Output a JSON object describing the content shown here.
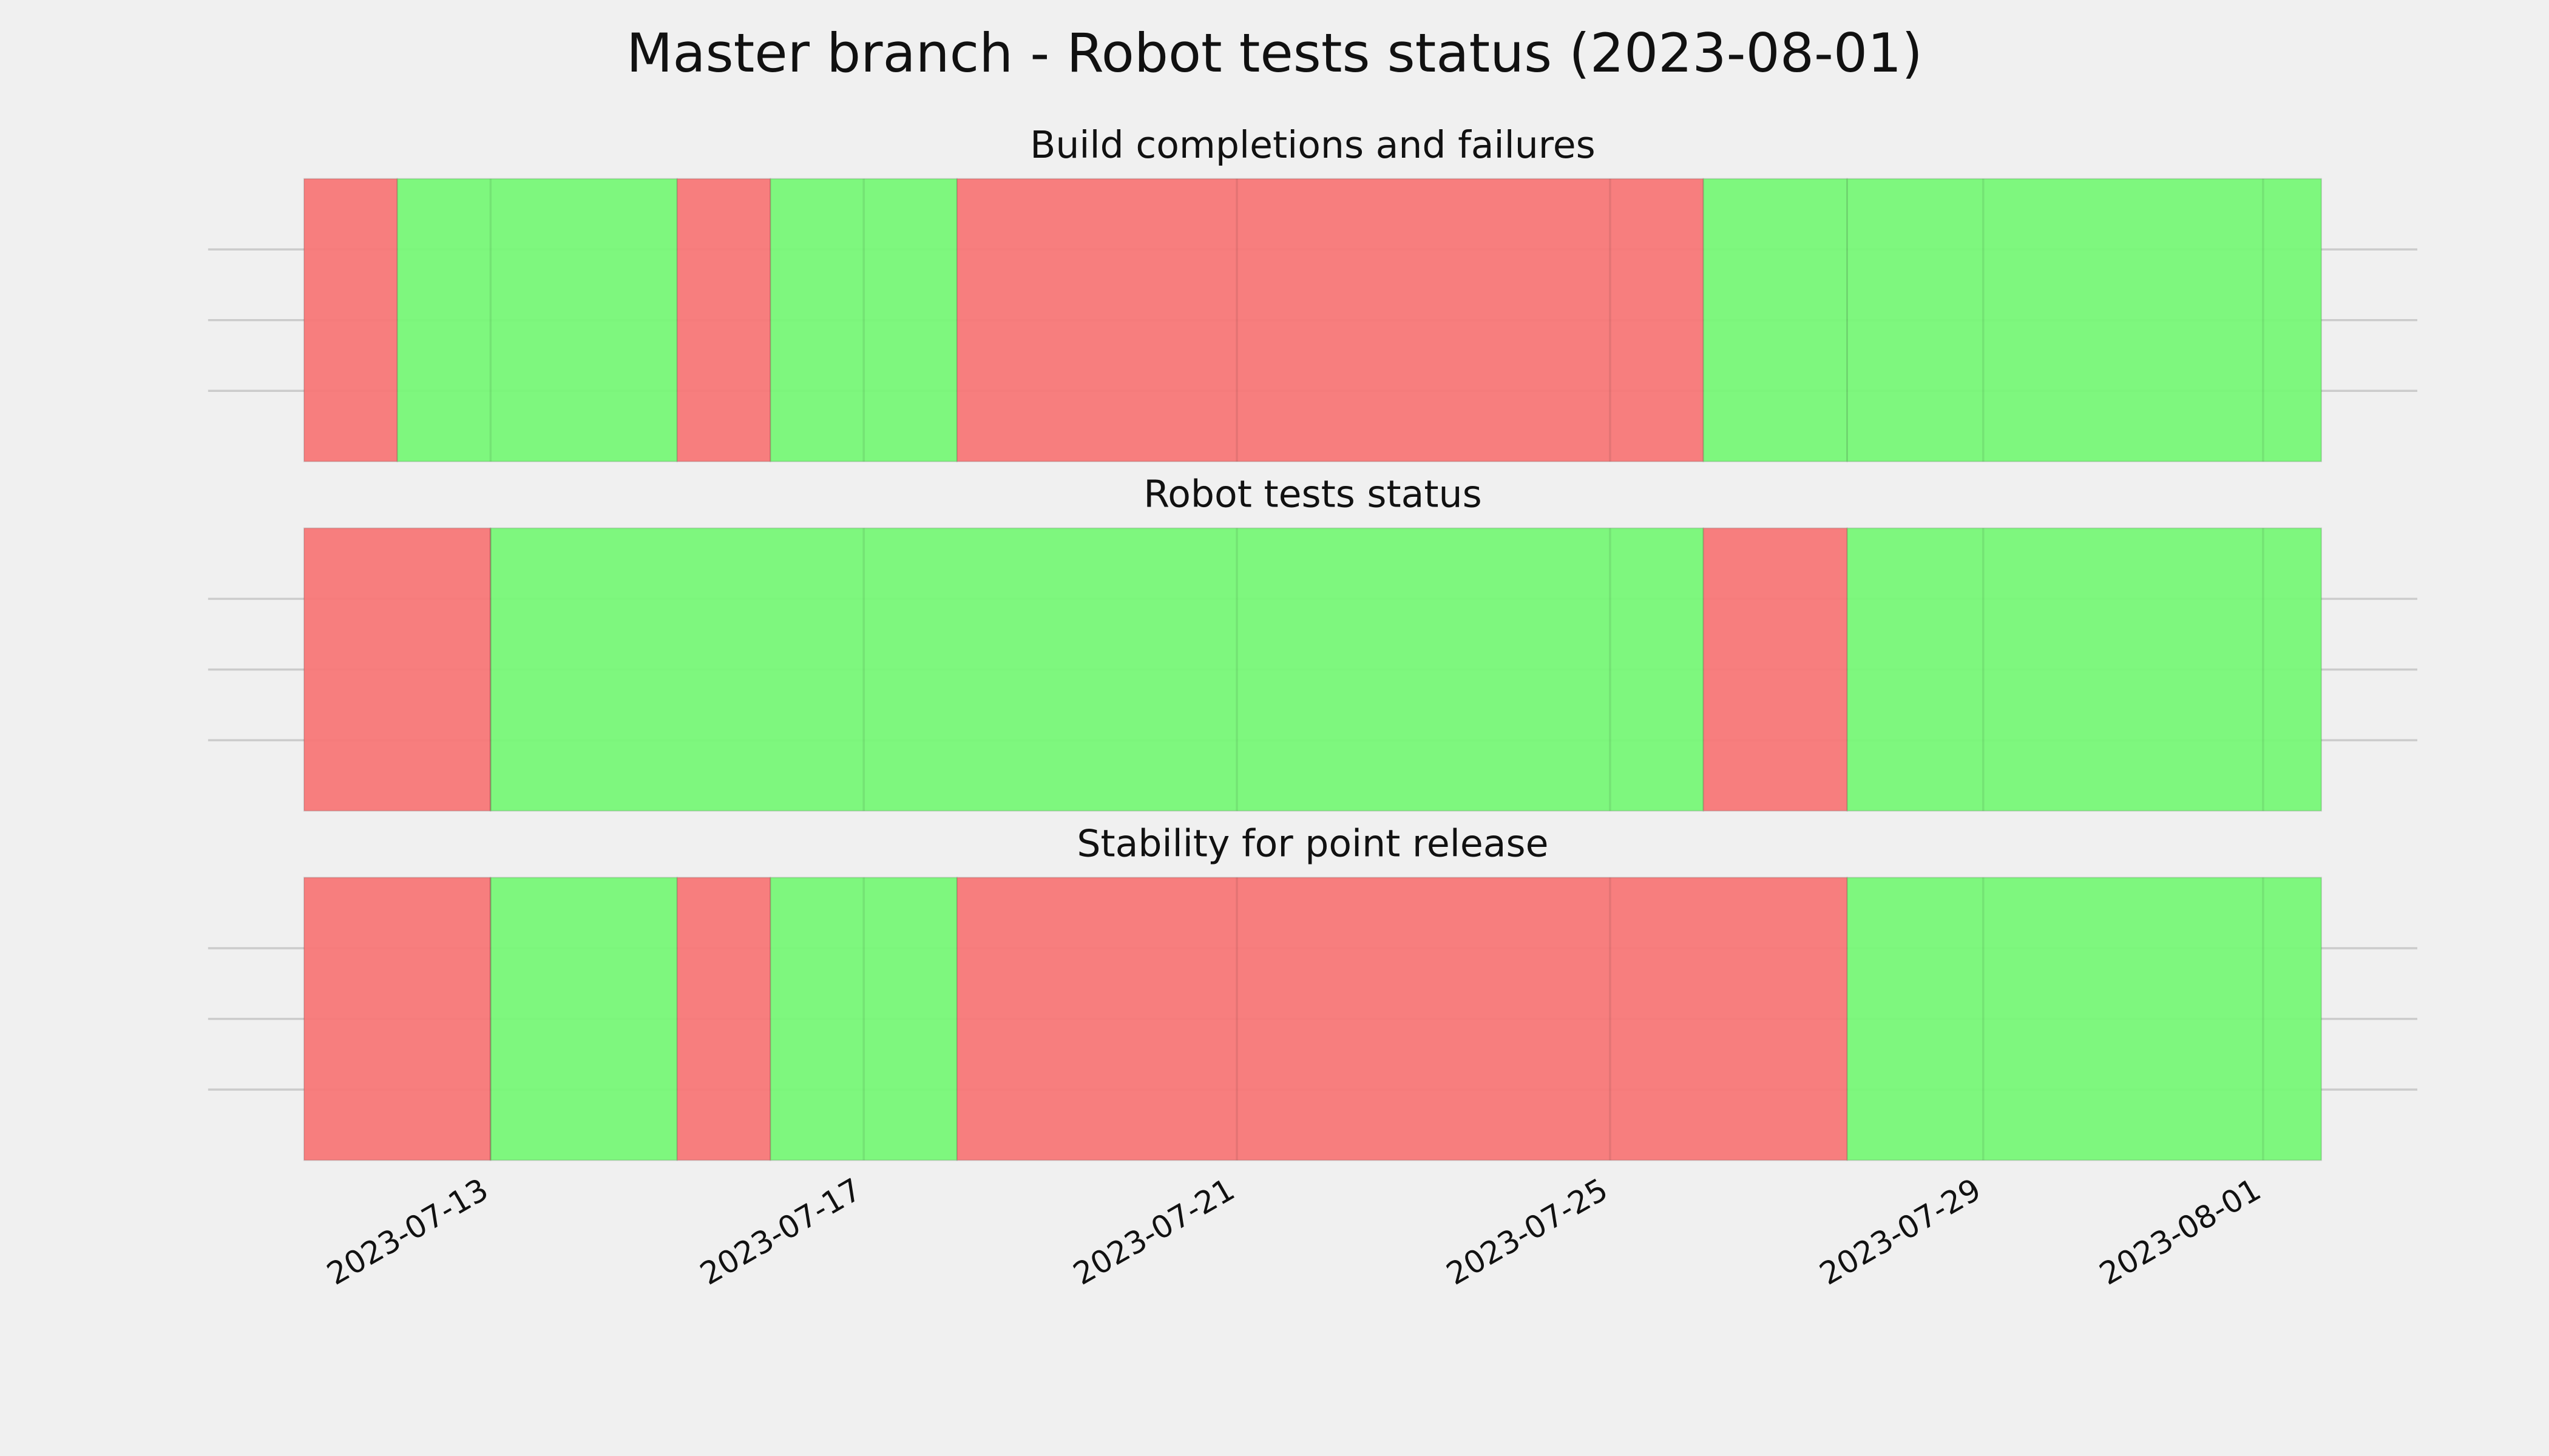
{
  "title": "Master branch - Robot tests status (2023-08-01)",
  "chart_data": [
    {
      "type": "timeline",
      "title": "Build completions and failures",
      "xlim": [
        "2023-07-11",
        "2023-08-01T15:00"
      ],
      "ylim": [
        0,
        1
      ],
      "yticks": [
        0.25,
        0.5,
        0.75
      ],
      "grid": true,
      "spans": [
        {
          "start": "2023-07-11",
          "end": "2023-07-12",
          "color": "#f77777"
        },
        {
          "start": "2023-07-12",
          "end": "2023-07-15",
          "color": "#77f777"
        },
        {
          "start": "2023-07-15",
          "end": "2023-07-16",
          "color": "#f77777"
        },
        {
          "start": "2023-07-16",
          "end": "2023-07-18",
          "color": "#77f777"
        },
        {
          "start": "2023-07-18",
          "end": "2023-07-26",
          "color": "#f77777"
        },
        {
          "start": "2023-07-26",
          "end": "2023-07-27T13:00",
          "color": "#77f777"
        },
        {
          "start": "2023-07-27T13:00",
          "end": "2023-08-01T15:00",
          "color": "#77f777"
        }
      ]
    },
    {
      "type": "timeline",
      "title": "Robot tests status",
      "xlim": [
        "2023-07-11",
        "2023-08-01T15:00"
      ],
      "ylim": [
        0,
        1
      ],
      "yticks": [
        0.25,
        0.5,
        0.75
      ],
      "grid": true,
      "spans": [
        {
          "start": "2023-07-11",
          "end": "2023-07-13",
          "color": "#f77777"
        },
        {
          "start": "2023-07-13",
          "end": "2023-07-26",
          "color": "#77f777"
        },
        {
          "start": "2023-07-26",
          "end": "2023-07-27T13:00",
          "color": "#f77777"
        },
        {
          "start": "2023-07-27T13:00",
          "end": "2023-08-01T15:00",
          "color": "#77f777"
        }
      ]
    },
    {
      "type": "timeline",
      "title": "Stability for point release",
      "xlim": [
        "2023-07-11",
        "2023-08-01T15:00"
      ],
      "ylim": [
        0,
        1
      ],
      "yticks": [
        0.25,
        0.5,
        0.75
      ],
      "grid": true,
      "xticks": [
        "2023-07-13",
        "2023-07-17",
        "2023-07-21",
        "2023-07-25",
        "2023-07-29",
        "2023-08-01"
      ],
      "spans": [
        {
          "start": "2023-07-11",
          "end": "2023-07-13",
          "color": "#f77777"
        },
        {
          "start": "2023-07-13",
          "end": "2023-07-15",
          "color": "#77f777"
        },
        {
          "start": "2023-07-15",
          "end": "2023-07-16",
          "color": "#f77777"
        },
        {
          "start": "2023-07-16",
          "end": "2023-07-18",
          "color": "#77f777"
        },
        {
          "start": "2023-07-18",
          "end": "2023-07-27T13:00",
          "color": "#f77777"
        },
        {
          "start": "2023-07-27T13:00",
          "end": "2023-08-01T15:00",
          "color": "#77f777"
        }
      ]
    }
  ]
}
